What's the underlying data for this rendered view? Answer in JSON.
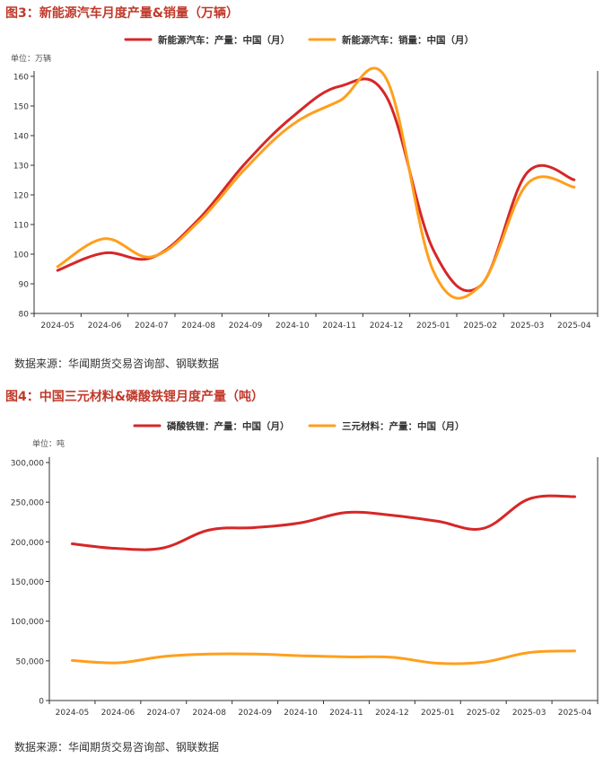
{
  "figure3": {
    "title": "图3：新能源汽车月度产量&销量（万辆）",
    "source": "数据来源：华闻期货交易咨询部、钢联数据"
  },
  "figure4": {
    "title": "图4：中国三元材料&磷酸铁锂月度产量（吨）",
    "source": "数据来源：华闻期货交易咨询部、钢联数据"
  },
  "chart_data": [
    {
      "type": "line",
      "unit_label": "单位：万辆",
      "categories": [
        "2024-05",
        "2024-06",
        "2024-07",
        "2024-08",
        "2024-09",
        "2024-10",
        "2024-11",
        "2024-12",
        "2025-01",
        "2025-02",
        "2025-03",
        "2025-04"
      ],
      "ylim": [
        80,
        160
      ],
      "yticks": [
        80,
        90,
        100,
        110,
        120,
        130,
        140,
        150,
        160
      ],
      "grid": false,
      "legend_position": "top",
      "series": [
        {
          "name": "新能源汽车：产量：中国（月）",
          "color": "#d62728",
          "values": [
            94.5,
            100.4,
            98.8,
            111.7,
            130.7,
            146.3,
            156.6,
            153.2,
            101.5,
            89.3,
            127.5,
            125.1
          ]
        },
        {
          "name": "新能源汽车：销量：中国（月）",
          "color": "#ff9f1c",
          "values": [
            95.8,
            105.2,
            99.1,
            110.9,
            128.9,
            143.7,
            151.7,
            159.2,
            94.4,
            89.3,
            123.7,
            122.6
          ]
        }
      ]
    },
    {
      "type": "line",
      "unit_label": "单位：吨",
      "categories": [
        "2024-05",
        "2024-06",
        "2024-07",
        "2024-08",
        "2024-09",
        "2024-10",
        "2024-11",
        "2024-12",
        "2025-01",
        "2025-02",
        "2025-03",
        "2025-04"
      ],
      "ylim": [
        0,
        300000
      ],
      "yticks": [
        0,
        50000,
        100000,
        150000,
        200000,
        250000,
        300000
      ],
      "grid": false,
      "legend_position": "top",
      "series": [
        {
          "name": "磷酸铁锂：产量：中国（月）",
          "color": "#d62728",
          "values": [
            197500,
            191500,
            192500,
            215000,
            218000,
            224000,
            237000,
            233500,
            226000,
            217000,
            254000,
            257000
          ]
        },
        {
          "name": "三元材料：产量：中国（月）",
          "color": "#ff9f1c",
          "values": [
            50500,
            47500,
            55500,
            58500,
            58500,
            56500,
            55000,
            54500,
            47000,
            48500,
            60500,
            62500
          ]
        }
      ]
    }
  ]
}
